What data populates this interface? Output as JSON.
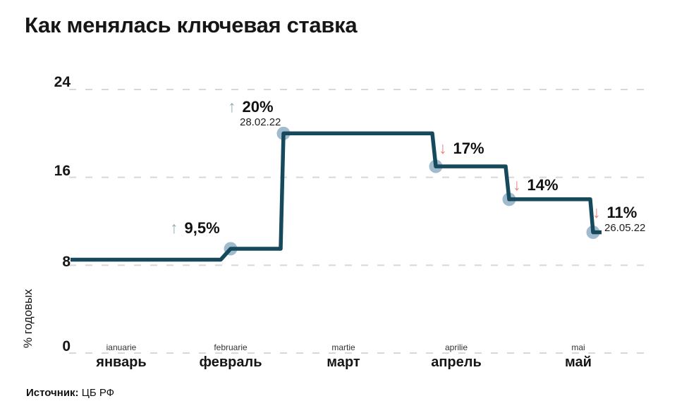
{
  "title": "Как менялась ключевая ставка",
  "source": {
    "label": "Источник:",
    "value": "ЦБ РФ"
  },
  "y_axis": {
    "label": "% годовых",
    "ticks": [
      "24",
      "16",
      "8",
      "0"
    ]
  },
  "x_axis": {
    "months": [
      {
        "small": "ianuarie",
        "label": "январь"
      },
      {
        "small": "februarie",
        "label": "февраль"
      },
      {
        "small": "martie",
        "label": "март"
      },
      {
        "small": "aprilie",
        "label": "апрель"
      },
      {
        "small": "mai",
        "label": "май"
      }
    ]
  },
  "annotations": [
    {
      "arrow": "↑",
      "direction": "up",
      "value": "9,5%",
      "date": ""
    },
    {
      "arrow": "↑",
      "direction": "up",
      "value": "20%",
      "date": "28.02.22"
    },
    {
      "arrow": "↓",
      "direction": "down",
      "value": "17%",
      "date": ""
    },
    {
      "arrow": "↓",
      "direction": "down",
      "value": "14%",
      "date": ""
    },
    {
      "arrow": "↓",
      "direction": "down",
      "value": "11%",
      "date": "26.05.22"
    }
  ],
  "colors": {
    "line": "#17495d",
    "marker": "#8fafc4",
    "arrow_up": "#94abb1",
    "arrow_down": "#ec827c",
    "grid": "#d8d8d8",
    "text": "#161616"
  },
  "chart_data": {
    "type": "line",
    "step": true,
    "title": "Как менялась ключевая ставка",
    "ylabel": "% годовых",
    "ylim": [
      0,
      24
    ],
    "yticks": [
      24,
      16,
      8,
      0
    ],
    "x_categories": [
      "январь",
      "февраль",
      "март",
      "апрель",
      "май"
    ],
    "grid": "dashed horizontal",
    "legend": "none",
    "series": [
      {
        "name": "Ключевая ставка, % годовых",
        "points": [
          {
            "value": 8.5,
            "annotation": "",
            "direction": "",
            "date": ""
          },
          {
            "value": 9.5,
            "annotation": "9,5%",
            "direction": "up",
            "date": ""
          },
          {
            "value": 20,
            "annotation": "20%",
            "direction": "up",
            "date": "28.02.22"
          },
          {
            "value": 17,
            "annotation": "17%",
            "direction": "down",
            "date": ""
          },
          {
            "value": 14,
            "annotation": "14%",
            "direction": "down",
            "date": ""
          },
          {
            "value": 11,
            "annotation": "11%",
            "direction": "down",
            "date": "26.05.22"
          }
        ]
      }
    ]
  }
}
